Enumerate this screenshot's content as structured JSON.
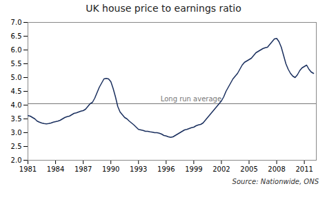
{
  "chart_data": {
    "type": "line",
    "title": "UK house price to earnings ratio",
    "caption": "Source: Nationwide, ONS",
    "color": "#1a2f5e",
    "grid": false,
    "xlim": [
      1981,
      2012.3
    ],
    "xticks": [
      1981,
      1984,
      1987,
      1990,
      1993,
      1996,
      1999,
      2002,
      2005,
      2008,
      2011
    ],
    "ylim": [
      2.0,
      7.0
    ],
    "yticks": [
      {
        "value": 2.0,
        "label": "2.0"
      },
      2.5,
      {
        "value": 3.0,
        "label": "3.0"
      },
      3.5,
      {
        "value": 4.0,
        "label": "4.0"
      },
      4.5,
      {
        "value": 5.0,
        "label": "5.0"
      },
      5.5,
      {
        "value": 6.0,
        "label": "6.0"
      },
      6.5,
      {
        "value": 7.0,
        "label": "7.0"
      }
    ],
    "hlines": [
      {
        "value": 4.05,
        "label": "Long run average",
        "color": "#777777"
      }
    ],
    "x": [
      1981.0,
      1981.25,
      1981.5,
      1981.75,
      1982.0,
      1982.25,
      1982.5,
      1982.75,
      1983.0,
      1983.25,
      1983.5,
      1983.75,
      1984.0,
      1984.25,
      1984.5,
      1984.75,
      1985.0,
      1985.25,
      1985.5,
      1985.75,
      1986.0,
      1986.25,
      1986.5,
      1986.75,
      1987.0,
      1987.25,
      1987.5,
      1987.75,
      1988.0,
      1988.25,
      1988.5,
      1988.75,
      1989.0,
      1989.25,
      1989.5,
      1989.75,
      1990.0,
      1990.25,
      1990.5,
      1990.75,
      1991.0,
      1991.25,
      1991.5,
      1991.75,
      1992.0,
      1992.25,
      1992.5,
      1992.75,
      1993.0,
      1993.25,
      1993.5,
      1993.75,
      1994.0,
      1994.25,
      1994.5,
      1994.75,
      1995.0,
      1995.25,
      1995.5,
      1995.75,
      1996.0,
      1996.25,
      1996.5,
      1996.75,
      1997.0,
      1997.25,
      1997.5,
      1997.75,
      1998.0,
      1998.25,
      1998.5,
      1998.75,
      1999.0,
      1999.25,
      1999.5,
      1999.75,
      2000.0,
      2000.25,
      2000.5,
      2000.75,
      2001.0,
      2001.25,
      2001.5,
      2001.75,
      2002.0,
      2002.25,
      2002.5,
      2002.75,
      2003.0,
      2003.25,
      2003.5,
      2003.75,
      2004.0,
      2004.25,
      2004.5,
      2004.75,
      2005.0,
      2005.25,
      2005.5,
      2005.75,
      2006.0,
      2006.25,
      2006.5,
      2006.75,
      2007.0,
      2007.25,
      2007.5,
      2007.75,
      2008.0,
      2008.25,
      2008.5,
      2008.75,
      2009.0,
      2009.25,
      2009.5,
      2009.75,
      2010.0,
      2010.25,
      2010.5,
      2010.75,
      2011.0,
      2011.25,
      2011.5,
      2011.75,
      2012.0
    ],
    "values": [
      3.62,
      3.6,
      3.55,
      3.5,
      3.42,
      3.38,
      3.35,
      3.33,
      3.32,
      3.33,
      3.35,
      3.38,
      3.4,
      3.42,
      3.45,
      3.5,
      3.55,
      3.58,
      3.6,
      3.65,
      3.7,
      3.72,
      3.75,
      3.78,
      3.8,
      3.85,
      3.95,
      4.05,
      4.1,
      4.25,
      4.45,
      4.65,
      4.8,
      4.95,
      4.97,
      4.95,
      4.85,
      4.6,
      4.3,
      3.95,
      3.75,
      3.65,
      3.55,
      3.5,
      3.42,
      3.35,
      3.28,
      3.2,
      3.12,
      3.1,
      3.08,
      3.05,
      3.05,
      3.03,
      3.02,
      3.0,
      3.0,
      2.98,
      2.95,
      2.9,
      2.88,
      2.85,
      2.83,
      2.85,
      2.9,
      2.95,
      3.0,
      3.05,
      3.1,
      3.12,
      3.15,
      3.18,
      3.2,
      3.25,
      3.28,
      3.3,
      3.35,
      3.45,
      3.55,
      3.65,
      3.75,
      3.85,
      3.95,
      4.05,
      4.15,
      4.3,
      4.5,
      4.65,
      4.8,
      4.95,
      5.05,
      5.15,
      5.3,
      5.45,
      5.55,
      5.6,
      5.65,
      5.7,
      5.8,
      5.9,
      5.95,
      6.0,
      6.05,
      6.08,
      6.1,
      6.2,
      6.3,
      6.4,
      6.42,
      6.3,
      6.1,
      5.8,
      5.5,
      5.3,
      5.15,
      5.05,
      5.0,
      5.1,
      5.25,
      5.35,
      5.4,
      5.45,
      5.3,
      5.2,
      5.15
    ]
  }
}
